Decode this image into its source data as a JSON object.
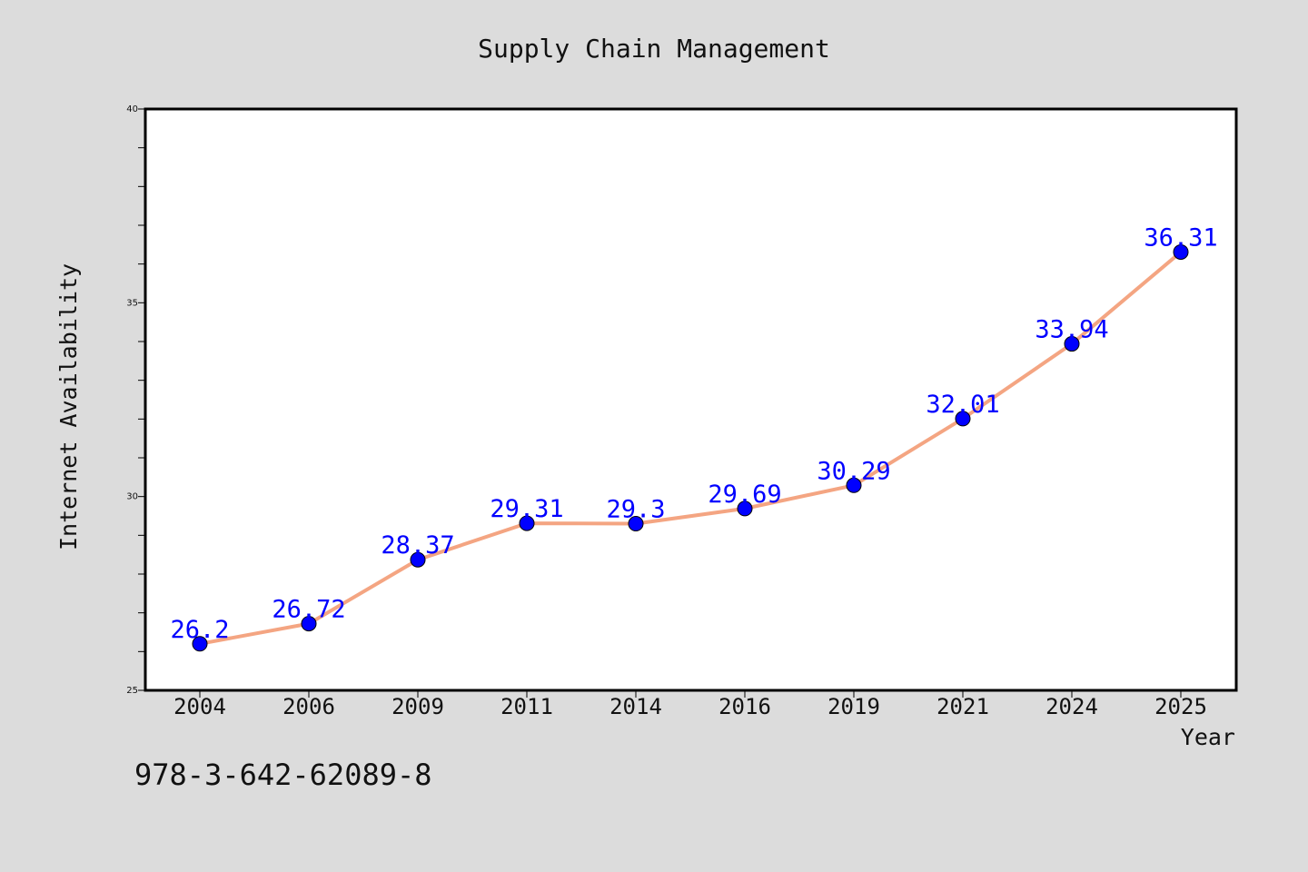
{
  "chart_data": {
    "type": "line",
    "title": "Supply Chain Management",
    "xlabel": "Year",
    "ylabel": "Internet Availability",
    "categories": [
      "2004",
      "2006",
      "2009",
      "2011",
      "2014",
      "2016",
      "2019",
      "2021",
      "2024",
      "2025"
    ],
    "series": [
      {
        "values": [
          26.2,
          26.72,
          28.37,
          29.31,
          29.3,
          29.69,
          30.29,
          32.01,
          33.94,
          36.31
        ]
      }
    ],
    "data_labels": [
      "26.2",
      "26.72",
      "28.37",
      "29.31",
      "29.3",
      "29.69",
      "30.29",
      "32.01",
      "33.94",
      "36.31"
    ],
    "ylim": [
      25,
      40
    ],
    "y_ticks": [
      "25",
      "30",
      "35",
      "40"
    ],
    "y_minor_step": 1,
    "grid": false,
    "line_color": "#f4a582",
    "marker_color": "#0000ff",
    "label_color": "#0000ff",
    "background_color": "#dcdcdc",
    "plot_background": "#ffffff"
  },
  "footer": {
    "code": "978-3-642-62089-8"
  }
}
